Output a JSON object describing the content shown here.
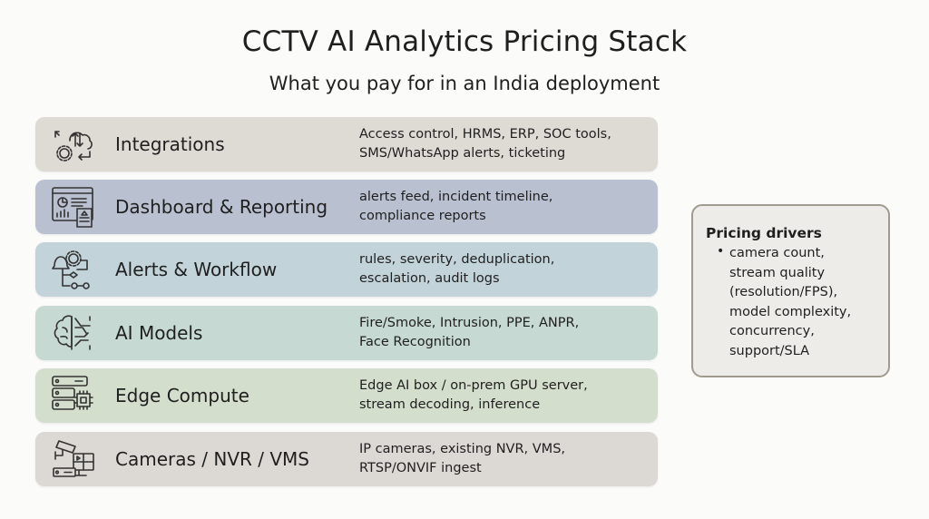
{
  "title": "CCTV AI Analytics Pricing Stack",
  "subtitle": "What you pay for in an India deployment",
  "colors": {
    "integrations": "#dedbd5",
    "dashboard": "#b9c1d0",
    "alerts": "#c3d3da",
    "ai_models": "#c6d9d2",
    "edge": "#d4decd",
    "cameras": "#dcd9d4",
    "drivers_border": "#a09a8f"
  },
  "layers": [
    {
      "name": "Integrations",
      "icon": "cloud-gear-sync-icon",
      "description": "Access control, HRMS, ERP, SOC tools,\nSMS/WhatsApp alerts, ticketing"
    },
    {
      "name": "Dashboard & Reporting",
      "icon": "dashboard-report-icon",
      "description": "alerts feed, incident timeline,\ncompliance reports"
    },
    {
      "name": "Alerts & Workflow",
      "icon": "bell-workflow-icon",
      "description": "rules, severity, deduplication,\nescalation, audit logs"
    },
    {
      "name": "AI Models",
      "icon": "brain-circuit-icon",
      "description": "Fire/Smoke, Intrusion, PPE, ANPR,\nFace Recognition"
    },
    {
      "name": "Edge Compute",
      "icon": "server-chip-icon",
      "description": "Edge AI box / on-prem GPU server,\nstream decoding, inference"
    },
    {
      "name": "Cameras / NVR / VMS",
      "icon": "camera-nvr-icon",
      "description": "IP cameras, existing NVR, VMS,\nRTSP/ONVIF ingest"
    }
  ],
  "drivers": {
    "heading": "Pricing drivers",
    "items": [
      "camera count,\nstream quality\n(resolution/FPS),\nmodel complexity,\nconcurrency,\nsupport/SLA"
    ]
  }
}
